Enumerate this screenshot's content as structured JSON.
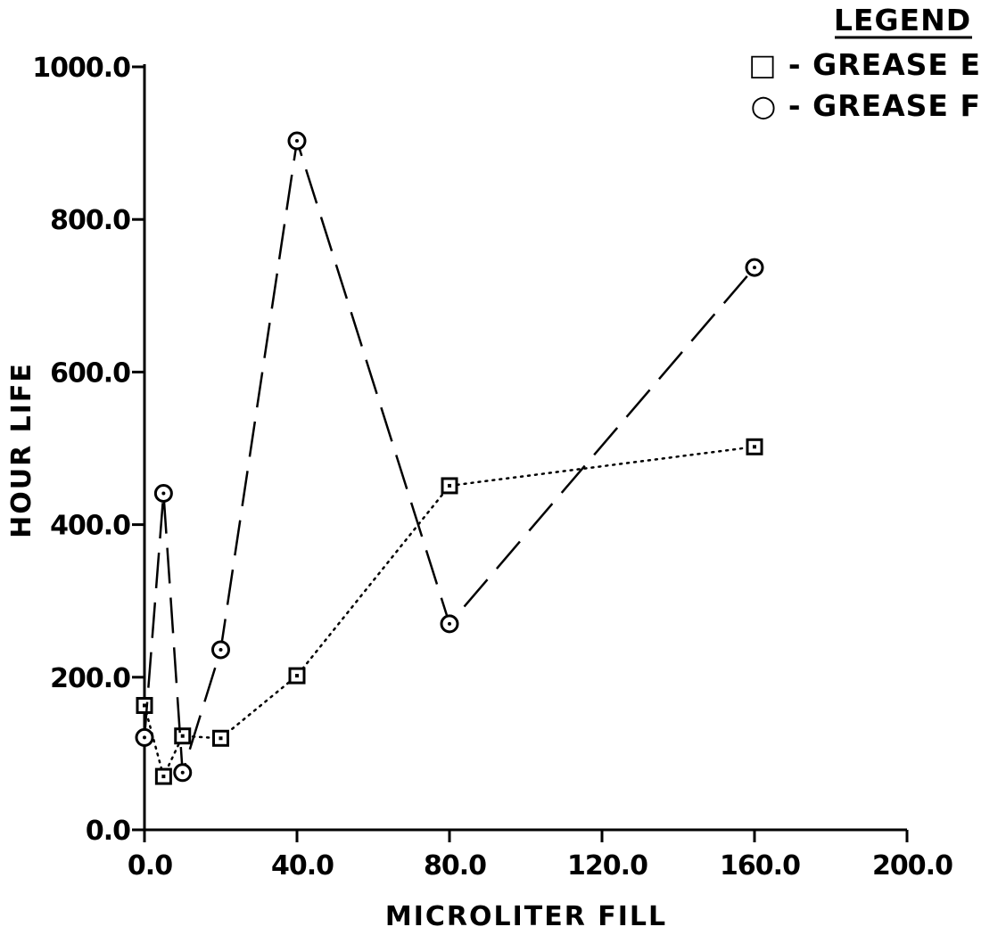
{
  "chart_data": {
    "type": "line",
    "title": "",
    "xlabel": "MICROLITER FILL",
    "ylabel": "HOUR LIFE",
    "xlim": [
      0,
      200
    ],
    "ylim": [
      0,
      1000
    ],
    "x_ticks": [
      0,
      40,
      80,
      120,
      160,
      200
    ],
    "y_ticks": [
      0,
      200,
      400,
      600,
      800,
      1000
    ],
    "x_tick_labels": [
      "0.0",
      "40.0",
      "80.0",
      "120.0",
      "160.0",
      "200.0"
    ],
    "y_tick_labels": [
      "0.0",
      "200.0",
      "400.0",
      "600.0",
      "800.0",
      "1000.0"
    ],
    "grid": false,
    "legend": {
      "title": "LEGEND",
      "position": "top-right"
    },
    "series": [
      {
        "name": "GREASE E",
        "legend_label": "□ - GREASE E",
        "marker": "square",
        "line_style": "dotted",
        "points": [
          {
            "x": 0,
            "y": 163
          },
          {
            "x": 5,
            "y": 70
          },
          {
            "x": 10,
            "y": 123
          },
          {
            "x": 20,
            "y": 120
          },
          {
            "x": 40,
            "y": 202
          },
          {
            "x": 80,
            "y": 451
          },
          {
            "x": 160,
            "y": 502
          }
        ]
      },
      {
        "name": "GREASE F",
        "legend_label": "○ - GREASE F",
        "marker": "circle",
        "line_style": "long-dash",
        "points": [
          {
            "x": 0,
            "y": 121
          },
          {
            "x": 5,
            "y": 441
          },
          {
            "x": 10,
            "y": 75
          },
          {
            "x": 20,
            "y": 236
          },
          {
            "x": 40,
            "y": 903
          },
          {
            "x": 80,
            "y": 270
          },
          {
            "x": 160,
            "y": 737
          }
        ]
      }
    ]
  }
}
